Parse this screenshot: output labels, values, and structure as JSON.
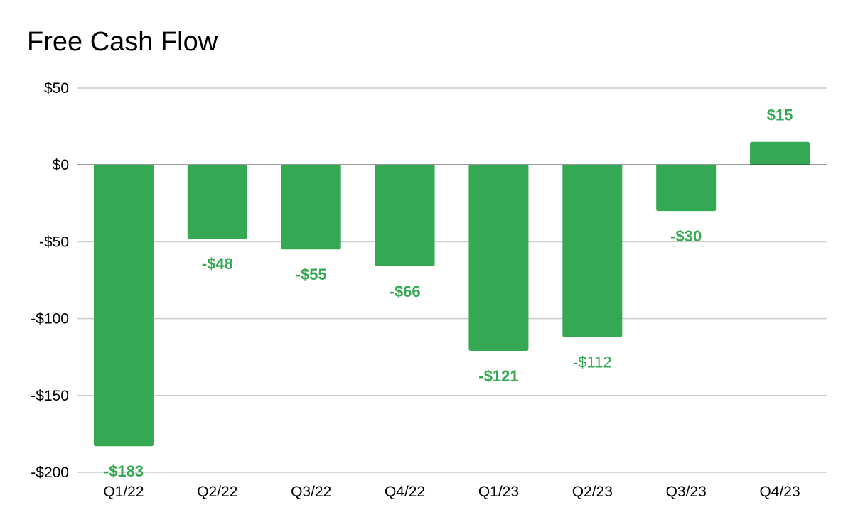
{
  "chart_data": {
    "type": "bar",
    "title": "Free Cash Flow",
    "xlabel": "",
    "ylabel": "",
    "categories": [
      "Q1/22",
      "Q2/22",
      "Q3/22",
      "Q4/22",
      "Q1/23",
      "Q2/23",
      "Q3/23",
      "Q4/23"
    ],
    "values": [
      -183,
      -48,
      -55,
      -66,
      -121,
      -112,
      -30,
      15
    ],
    "data_labels": [
      "-$183",
      "-$48",
      "-$55",
      "-$66",
      "-$121",
      "-$112",
      "-$30",
      "$15"
    ],
    "data_label_bold": [
      true,
      true,
      true,
      true,
      true,
      false,
      true,
      true
    ],
    "ylim": [
      -200,
      50
    ],
    "yticks": [
      50,
      0,
      -50,
      -100,
      -150,
      -200
    ],
    "ytick_labels": [
      "$50",
      "$0",
      "-$50",
      "-$100",
      "-$150",
      "-$200"
    ],
    "grid": true,
    "legend": "none",
    "colors": {
      "bar": "#34a853",
      "label": "#34a853",
      "grid": "#cccccc",
      "zero_line": "#333333",
      "text": "#000000"
    }
  }
}
